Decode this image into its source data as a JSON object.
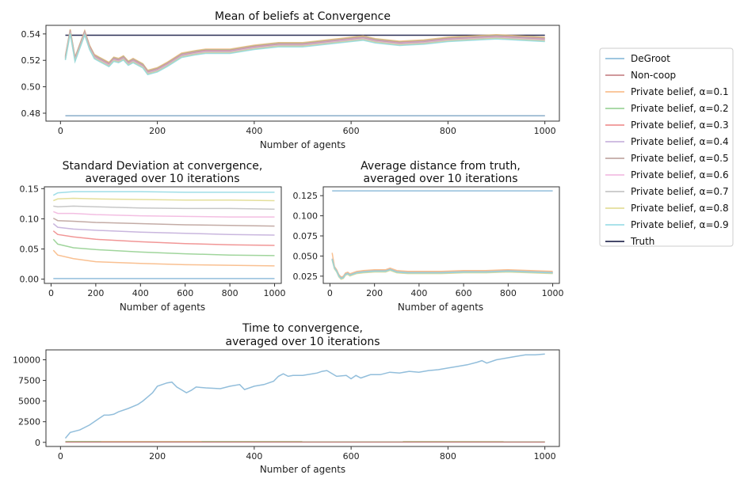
{
  "colors": {
    "DeGroot": "#7fb3d5",
    "Non-coop": "#c0777a",
    "a01": "#f8b57e",
    "a02": "#8fce8b",
    "a03": "#ee8484",
    "a04": "#c0a9d8",
    "a05": "#b99c95",
    "a06": "#f1b3dd",
    "a07": "#bdbdbd",
    "a08": "#dfd98a",
    "a09": "#8ed8e3",
    "Truth": "#2b2f55"
  },
  "legend": [
    {
      "key": "DeGroot",
      "label": "DeGroot"
    },
    {
      "key": "Non-coop",
      "label": "Non-coop"
    },
    {
      "key": "a01",
      "label": "Private belief, α=0.1"
    },
    {
      "key": "a02",
      "label": "Private belief, α=0.2"
    },
    {
      "key": "a03",
      "label": "Private belief, α=0.3"
    },
    {
      "key": "a04",
      "label": "Private belief, α=0.4"
    },
    {
      "key": "a05",
      "label": "Private belief, α=0.5"
    },
    {
      "key": "a06",
      "label": "Private belief, α=0.6"
    },
    {
      "key": "a07",
      "label": "Private belief, α=0.7"
    },
    {
      "key": "a08",
      "label": "Private belief, α=0.8"
    },
    {
      "key": "a09",
      "label": "Private belief, α=0.9"
    },
    {
      "key": "Truth",
      "label": "Truth"
    }
  ],
  "chart_data": [
    {
      "id": "mean",
      "type": "line",
      "title": "Mean of beliefs at Convergence",
      "title_lines": [
        "Mean of beliefs at Convergence"
      ],
      "xlabel": "Number of agents",
      "ylabel": "",
      "xlim": [
        -30,
        1030
      ],
      "ylim": [
        0.474,
        0.5465
      ],
      "xticks": [
        0,
        200,
        400,
        600,
        800,
        1000
      ],
      "yticks": [
        0.48,
        0.5,
        0.52,
        0.54
      ],
      "ytick_labels": [
        "0.48",
        "0.50",
        "0.52",
        "0.54"
      ],
      "x": [
        10,
        20,
        30,
        50,
        60,
        70,
        80,
        100,
        110,
        120,
        130,
        140,
        150,
        170,
        180,
        200,
        220,
        250,
        280,
        300,
        350,
        400,
        450,
        500,
        550,
        600,
        625,
        650,
        700,
        750,
        800,
        850,
        900,
        950,
        1000
      ],
      "series": [
        {
          "name": "Truth",
          "key": "Truth",
          "x": [
            10,
            1000
          ],
          "values": [
            0.539,
            0.539
          ]
        },
        {
          "name": "Non-coop",
          "key": "Non-coop",
          "x": [
            10,
            1000
          ],
          "values": [
            0.478,
            0.478
          ]
        },
        {
          "name": "DeGroot",
          "key": "DeGroot",
          "x": [
            10,
            1000
          ],
          "values": [
            0.478,
            0.478
          ]
        },
        {
          "name": "Private belief, α=0.1",
          "key": "a01",
          "offset": 0.0015
        },
        {
          "name": "Private belief, α=0.2",
          "key": "a02",
          "offset": 0.001
        },
        {
          "name": "Private belief, α=0.3",
          "key": "a03",
          "offset": 0.0006
        },
        {
          "name": "Private belief, α=0.4",
          "key": "a04",
          "offset": 0.0002
        },
        {
          "name": "Private belief, α=0.5",
          "key": "a05",
          "offset": -0.0002
        },
        {
          "name": "Private belief, α=0.6",
          "key": "a06",
          "offset": -0.0006
        },
        {
          "name": "Private belief, α=0.7",
          "key": "a07",
          "offset": -0.001
        },
        {
          "name": "Private belief, α=0.8",
          "key": "a08",
          "offset": -0.0014
        },
        {
          "name": "Private belief, α=0.9",
          "key": "a09",
          "offset": -0.0018
        }
      ],
      "base": [
        0.522,
        0.542,
        0.521,
        0.541,
        0.53,
        0.523,
        0.521,
        0.517,
        0.521,
        0.52,
        0.522,
        0.518,
        0.52,
        0.516,
        0.511,
        0.513,
        0.517,
        0.524,
        0.526,
        0.527,
        0.527,
        0.53,
        0.532,
        0.532,
        0.534,
        0.536,
        0.537,
        0.535,
        0.533,
        0.534,
        0.536,
        0.537,
        0.538,
        0.537,
        0.536
      ]
    },
    {
      "id": "std",
      "type": "line",
      "title": "Standard Deviation at convergence, averaged over 10 iterations",
      "title_lines": [
        "Standard Deviation at convergence,",
        "averaged over 10 iterations"
      ],
      "xlabel": "Number of agents",
      "ylabel": "",
      "xlim": [
        -30,
        1030
      ],
      "ylim": [
        -0.007,
        0.153
      ],
      "xticks": [
        0,
        200,
        400,
        600,
        800,
        1000
      ],
      "yticks": [
        0.0,
        0.05,
        0.1,
        0.15
      ],
      "ytick_labels": [
        "0.00",
        "0.05",
        "0.10",
        "0.15"
      ],
      "series": [
        {
          "name": "DeGroot",
          "key": "DeGroot",
          "x": [
            10,
            1000
          ],
          "values": [
            0.001,
            0.001
          ]
        },
        {
          "name": "Private belief, α=0.1",
          "key": "a01",
          "x": [
            10,
            30,
            100,
            200,
            400,
            600,
            800,
            1000
          ],
          "values": [
            0.048,
            0.04,
            0.034,
            0.029,
            0.026,
            0.024,
            0.023,
            0.022
          ]
        },
        {
          "name": "Private belief, α=0.2",
          "key": "a02",
          "x": [
            10,
            30,
            100,
            200,
            400,
            600,
            800,
            1000
          ],
          "values": [
            0.066,
            0.058,
            0.052,
            0.049,
            0.045,
            0.042,
            0.04,
            0.039
          ]
        },
        {
          "name": "Private belief, α=0.3",
          "key": "a03",
          "x": [
            10,
            30,
            100,
            200,
            400,
            600,
            800,
            1000
          ],
          "values": [
            0.08,
            0.074,
            0.07,
            0.066,
            0.062,
            0.059,
            0.057,
            0.056
          ]
        },
        {
          "name": "Private belief, α=0.4",
          "key": "a04",
          "x": [
            10,
            30,
            100,
            200,
            400,
            600,
            800,
            1000
          ],
          "values": [
            0.092,
            0.086,
            0.083,
            0.081,
            0.078,
            0.076,
            0.074,
            0.073
          ]
        },
        {
          "name": "Private belief, α=0.5",
          "key": "a05",
          "x": [
            10,
            30,
            100,
            200,
            400,
            600,
            800,
            1000
          ],
          "values": [
            0.101,
            0.097,
            0.096,
            0.094,
            0.092,
            0.09,
            0.089,
            0.088
          ]
        },
        {
          "name": "Private belief, α=0.6",
          "key": "a06",
          "x": [
            10,
            30,
            100,
            200,
            400,
            600,
            800,
            1000
          ],
          "values": [
            0.112,
            0.109,
            0.109,
            0.107,
            0.105,
            0.104,
            0.103,
            0.103
          ]
        },
        {
          "name": "Private belief, α=0.7",
          "key": "a07",
          "x": [
            10,
            30,
            100,
            200,
            400,
            600,
            800,
            1000
          ],
          "values": [
            0.121,
            0.12,
            0.121,
            0.12,
            0.118,
            0.117,
            0.117,
            0.116
          ]
        },
        {
          "name": "Private belief, α=0.8",
          "key": "a08",
          "x": [
            10,
            30,
            100,
            200,
            400,
            600,
            800,
            1000
          ],
          "values": [
            0.13,
            0.133,
            0.134,
            0.133,
            0.132,
            0.131,
            0.131,
            0.13
          ]
        },
        {
          "name": "Private belief, α=0.9",
          "key": "a09",
          "x": [
            10,
            30,
            100,
            200,
            400,
            600,
            800,
            1000
          ],
          "values": [
            0.139,
            0.143,
            0.145,
            0.145,
            0.145,
            0.144,
            0.144,
            0.144
          ]
        }
      ]
    },
    {
      "id": "dist",
      "type": "line",
      "title": "Average distance from truth, averaged over 10 iterations",
      "title_lines": [
        "Average distance from truth,",
        "averaged over 10 iterations"
      ],
      "xlabel": "Number of agents",
      "ylabel": "",
      "xlim": [
        -30,
        1030
      ],
      "ylim": [
        0.016,
        0.136
      ],
      "xticks": [
        0,
        200,
        400,
        600,
        800,
        1000
      ],
      "yticks": [
        0.025,
        0.05,
        0.075,
        0.1,
        0.125
      ],
      "ytick_labels": [
        "0.025",
        "0.050",
        "0.075",
        "0.100",
        "0.125"
      ],
      "x": [
        10,
        20,
        30,
        40,
        50,
        60,
        70,
        80,
        90,
        100,
        120,
        150,
        200,
        250,
        270,
        300,
        350,
        400,
        500,
        600,
        700,
        800,
        900,
        1000
      ],
      "series": [
        {
          "name": "DeGroot",
          "key": "DeGroot",
          "x": [
            10,
            1000
          ],
          "values": [
            0.131,
            0.131
          ]
        },
        {
          "name": "Private belief, α=0.1",
          "key": "a01",
          "offset": 0.002,
          "firstValue": 0.054
        },
        {
          "name": "Private belief, α=0.2",
          "key": "a02",
          "offset": 0.0
        },
        {
          "name": "Private belief, α=0.3",
          "key": "a03",
          "offset": 0.0005
        },
        {
          "name": "Private belief, α=0.4",
          "key": "a04",
          "offset": -0.0005
        },
        {
          "name": "Private belief, α=0.5",
          "key": "a05",
          "offset": 0.0003
        },
        {
          "name": "Private belief, α=0.6",
          "key": "a06",
          "offset": -0.0003
        },
        {
          "name": "Private belief, α=0.7",
          "key": "a07",
          "offset": 0.0008
        },
        {
          "name": "Private belief, α=0.8",
          "key": "a08",
          "offset": -0.0008
        },
        {
          "name": "Private belief, α=0.9",
          "key": "a09",
          "offset": 0.0
        }
      ],
      "base": [
        0.046,
        0.035,
        0.031,
        0.025,
        0.022,
        0.023,
        0.027,
        0.028,
        0.026,
        0.027,
        0.029,
        0.03,
        0.031,
        0.031,
        0.033,
        0.03,
        0.029,
        0.029,
        0.029,
        0.03,
        0.03,
        0.031,
        0.03,
        0.029
      ]
    },
    {
      "id": "time",
      "type": "line",
      "title": "Time to convergence, averaged over 10 iterations",
      "title_lines": [
        "Time to convergence,",
        "averaged over 10 iterations"
      ],
      "xlabel": "Number of agents",
      "ylabel": "",
      "xlim": [
        -30,
        1030
      ],
      "ylim": [
        -500,
        11200
      ],
      "xticks": [
        0,
        200,
        400,
        600,
        800,
        1000
      ],
      "yticks": [
        0,
        2500,
        5000,
        7500,
        10000
      ],
      "ytick_labels": [
        "0",
        "2500",
        "5000",
        "7500",
        "10000"
      ],
      "series": [
        {
          "name": "DeGroot",
          "key": "DeGroot",
          "x": [
            10,
            20,
            40,
            60,
            80,
            90,
            100,
            110,
            120,
            140,
            160,
            170,
            180,
            190,
            200,
            220,
            230,
            240,
            260,
            270,
            280,
            300,
            330,
            350,
            370,
            380,
            400,
            420,
            440,
            450,
            460,
            470,
            480,
            500,
            520,
            530,
            540,
            550,
            570,
            590,
            600,
            610,
            620,
            640,
            660,
            680,
            700,
            720,
            740,
            760,
            780,
            800,
            820,
            840,
            860,
            870,
            880,
            900,
            920,
            940,
            960,
            980,
            1000
          ],
          "values": [
            500,
            1200,
            1500,
            2100,
            2900,
            3300,
            3300,
            3400,
            3700,
            4100,
            4600,
            5000,
            5500,
            6000,
            6800,
            7200,
            7300,
            6700,
            6000,
            6300,
            6700,
            6600,
            6500,
            6800,
            7000,
            6400,
            6800,
            7000,
            7400,
            8000,
            8300,
            8000,
            8100,
            8100,
            8300,
            8400,
            8600,
            8700,
            8000,
            8100,
            7700,
            8100,
            7800,
            8200,
            8200,
            8500,
            8400,
            8600,
            8500,
            8700,
            8800,
            9000,
            9200,
            9400,
            9700,
            9900,
            9600,
            10000,
            10200,
            10400,
            10600,
            10600,
            10700
          ]
        },
        {
          "name": "Private belief, α=0.1",
          "key": "a01",
          "x": [
            10,
            1000
          ],
          "values": [
            100,
            80
          ]
        },
        {
          "name": "Private belief, α=0.2",
          "key": "a02",
          "x": [
            10,
            1000
          ],
          "values": [
            90,
            70
          ]
        },
        {
          "name": "Non-coop",
          "key": "Non-coop",
          "x": [
            10,
            1000
          ],
          "values": [
            30,
            30
          ]
        }
      ]
    }
  ]
}
